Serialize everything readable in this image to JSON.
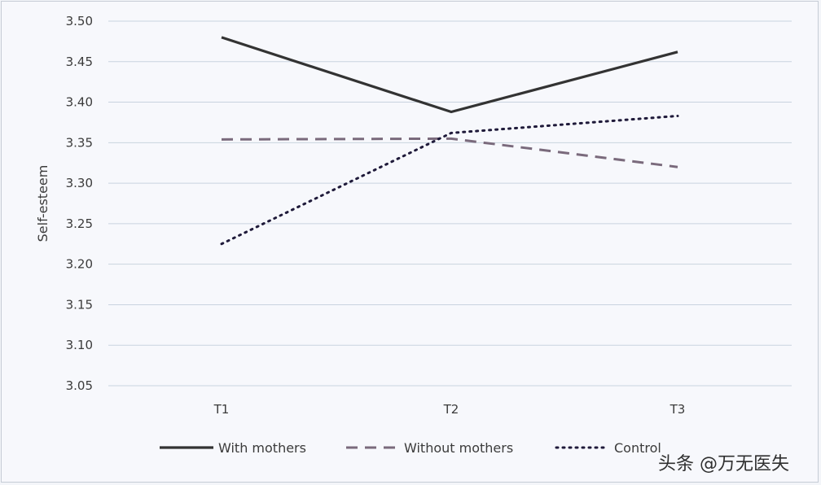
{
  "chart_data": {
    "type": "line",
    "title": "",
    "xlabel": "",
    "ylabel": "Self-esteem",
    "categories": [
      "T1",
      "T2",
      "T3"
    ],
    "ylim": [
      3.05,
      3.5
    ],
    "yticks": [
      "3.05",
      "3.10",
      "3.15",
      "3.20",
      "3.25",
      "3.30",
      "3.35",
      "3.40",
      "3.45",
      "3.50"
    ],
    "grid": true,
    "legend_position": "bottom",
    "series": [
      {
        "name": "With mothers",
        "values": [
          3.48,
          3.388,
          3.462
        ],
        "style": "solid",
        "color": "#333333"
      },
      {
        "name": "Without mothers",
        "values": [
          3.354,
          3.355,
          3.32
        ],
        "style": "dashed",
        "color": "#7a6a7c"
      },
      {
        "name": "Control",
        "values": [
          3.225,
          3.362,
          3.383
        ],
        "style": "dotted",
        "color": "#1f1a3a"
      }
    ]
  },
  "watermark": "头条 @万无医失"
}
